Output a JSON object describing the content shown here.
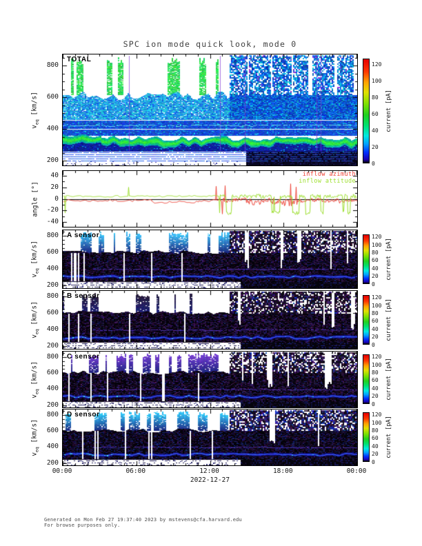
{
  "page": {
    "footer_line1": "Generated on Mon Feb 27 19:37:40 2023 by mstevens@cfa.harvard.edu",
    "footer_line2": "For browse purposes only."
  },
  "chart_data": {
    "type": "heatmap",
    "title": "SPC ion mode quick look, mode 0",
    "x_axis": {
      "tick_labels": [
        "00:00",
        "06:00",
        "12:00",
        "18:00",
        "00:00"
      ],
      "tick_hours": [
        0,
        6,
        12,
        18,
        24
      ],
      "minor_step_hours": 1,
      "date_label": "2022-12-27"
    },
    "colorbar": {
      "label": "current [pA]",
      "tick_values": [
        0,
        20,
        40,
        60,
        80,
        100,
        120
      ],
      "value_range": [
        0,
        127
      ],
      "gradient": [
        {
          "t": 0.0,
          "c": "#050008"
        },
        {
          "t": 0.03,
          "c": "#1c00b0"
        },
        {
          "t": 0.1,
          "c": "#0030ff"
        },
        {
          "t": 0.18,
          "c": "#00a0ff"
        },
        {
          "t": 0.26,
          "c": "#00e8e0"
        },
        {
          "t": 0.36,
          "c": "#00e070"
        },
        {
          "t": 0.46,
          "c": "#20d020"
        },
        {
          "t": 0.57,
          "c": "#80e000"
        },
        {
          "t": 0.68,
          "c": "#e0e000"
        },
        {
          "t": 0.78,
          "c": "#ffa000"
        },
        {
          "t": 0.88,
          "c": "#ff3800"
        },
        {
          "t": 1.0,
          "c": "#e60000"
        }
      ]
    },
    "panels": [
      {
        "id": "total",
        "label": "TOTAL",
        "kind": "spectrogram",
        "y_title": {
          "pre": "v",
          "sub": "eq",
          "post": " [km/s]"
        },
        "ytick_values": [
          200,
          400,
          600,
          800
        ],
        "yminor_step": 50,
        "ylim": [
          170,
          870
        ],
        "seed": 11,
        "features": {
          "style": "total",
          "regime_change_frac": 0.565,
          "core_band_center_kms": 322,
          "white_lines_kms": [
            400,
            455
          ]
        }
      },
      {
        "id": "angle",
        "kind": "line",
        "y_title": {
          "pre": "angle [°]"
        },
        "ytick_values": [
          -40,
          -20,
          0,
          20,
          40
        ],
        "yminor_step": 10,
        "ylim": [
          -48,
          48
        ],
        "seed": 7,
        "noisy_after_frac": 0.53,
        "series": [
          {
            "name": "inflow azimuth",
            "color": "#ee4135",
            "baseline_deg": -3
          },
          {
            "name": "inflow attitude",
            "color": "#9cdf2c",
            "baseline_deg": 4.5
          }
        ]
      },
      {
        "id": "a",
        "label": "A sensor",
        "kind": "spectrogram",
        "y_title": {
          "pre": "v",
          "sub": "eq",
          "post": " [km/s]"
        },
        "ytick_values": [
          200,
          400,
          600,
          800
        ],
        "yminor_step": 50,
        "ylim": [
          170,
          870
        ],
        "seed": 21,
        "features": {
          "style": "sensor",
          "regime_change_frac": 0.565,
          "core_band_center_kms": 310,
          "secondary_band_kms": 400,
          "top_color": [
            50,
            185,
            240
          ],
          "blue_level": 0.15,
          "cyan_core": 0.18
        }
      },
      {
        "id": "b",
        "label": "B sensor",
        "kind": "spectrogram",
        "y_title": {
          "pre": "v",
          "sub": "eq",
          "post": " [km/s]"
        },
        "ytick_values": [
          200,
          400,
          600,
          800
        ],
        "yminor_step": 50,
        "ylim": [
          170,
          870
        ],
        "seed": 22,
        "features": {
          "style": "sensor",
          "regime_change_frac": 0.565,
          "core_band_center_kms": 310,
          "secondary_band_kms": 400,
          "top_color": [
            28,
            16,
            52
          ],
          "blue_level": 0.08,
          "cyan_core": 0.08
        }
      },
      {
        "id": "c",
        "label": "C sensor",
        "kind": "spectrogram",
        "y_title": {
          "pre": "v",
          "sub": "eq",
          "post": " [km/s]"
        },
        "ytick_values": [
          200,
          400,
          600,
          800
        ],
        "yminor_step": 50,
        "ylim": [
          170,
          870
        ],
        "seed": 23,
        "features": {
          "style": "sensor",
          "regime_change_frac": 0.565,
          "core_band_center_kms": 310,
          "secondary_band_kms": 400,
          "top_color": [
            105,
            50,
            200
          ],
          "blue_level": 0.12,
          "cyan_core": 0.25
        }
      },
      {
        "id": "d",
        "label": "D sensor",
        "kind": "spectrogram",
        "y_title": {
          "pre": "v",
          "sub": "eq",
          "post": " [km/s]"
        },
        "ytick_values": [
          200,
          400,
          600,
          800
        ],
        "yminor_step": 50,
        "ylim": [
          170,
          870
        ],
        "seed": 24,
        "features": {
          "style": "sensor",
          "regime_change_frac": 0.565,
          "core_band_center_kms": 310,
          "secondary_band_kms": 400,
          "top_color": [
            40,
            190,
            240
          ],
          "blue_level": 0.3,
          "cyan_core": 0.3
        }
      }
    ]
  }
}
